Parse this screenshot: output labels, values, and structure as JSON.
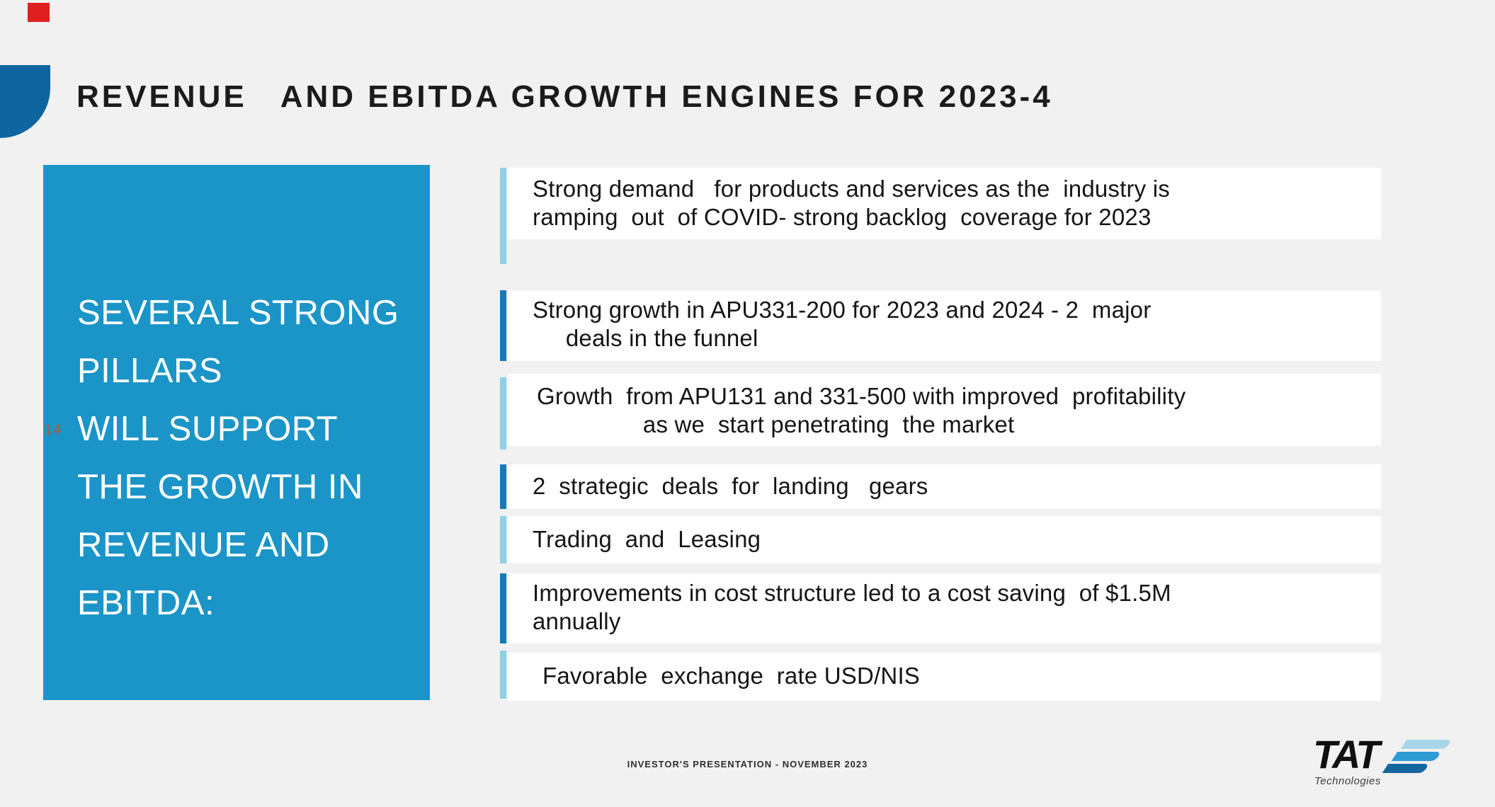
{
  "slide": {
    "title": "REVENUE   AND EBITDA GROWTH ENGINES FOR 2023-4",
    "page_number": "14",
    "footer": "INVESTOR'S PRESENTATION - NOVEMBER 2023"
  },
  "pillars": {
    "text": "SEVERAL STRONG\nPILLARS\nWILL SUPPORT\nTHE GROWTH IN\nREVENUE AND\nEBITDA:"
  },
  "bullets": [
    {
      "text": "Strong demand   for products and services as the  industry is\nramping  out  of COVID- strong backlog  coverage for 2023",
      "accent": "light"
    },
    {
      "text": "Strong growth in APU331-200 for 2023 and 2024 - 2  major\n     deals in the funnel",
      "accent": "dark"
    },
    {
      "text": "Growth  from APU131 and 331-500 with improved  profitability\n                as we  start penetrating  the market",
      "accent": "light"
    },
    {
      "text": "2  strategic  deals  for  landing   gears",
      "accent": "dark"
    },
    {
      "text": "Trading  and  Leasing",
      "accent": "light"
    },
    {
      "text": "Improvements in cost structure led to a cost saving  of $1.5M\nannually",
      "accent": "dark"
    },
    {
      "text": "Favorable  exchange  rate USD/NIS",
      "accent": "light"
    }
  ],
  "logo": {
    "name": "TAT",
    "subtext": "Technologies"
  },
  "colors": {
    "background": "#f1f1f1",
    "pillars_box_blue": "#1b95c8",
    "accent_dark_blue": "#187ab5",
    "accent_light_blue": "#8fd0e5",
    "corner_shape_blue": "#0d649e",
    "red_marker": "#e02020",
    "page_number_red": "#a15c4e",
    "logo_stripe_light": "#a9d5e9",
    "logo_stripe_mid": "#2d9ad2",
    "logo_stripe_dark": "#15659e"
  }
}
